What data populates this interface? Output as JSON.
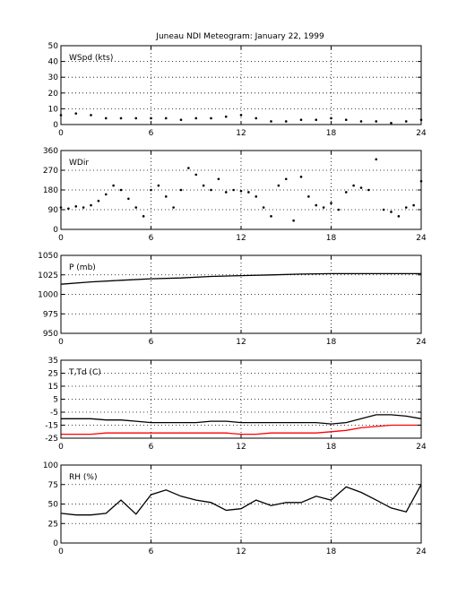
{
  "figure": {
    "title": "Juneau NDI Meteogram:   January 22, 1999"
  },
  "chart_data": [
    {
      "type": "scatter",
      "label": "WSpd (kts)",
      "xlim": [
        0,
        24
      ],
      "ylim": [
        0,
        50
      ],
      "xticks": [
        0,
        6,
        12,
        18,
        24
      ],
      "yticks": [
        0,
        10,
        20,
        30,
        40,
        50
      ],
      "grid": true,
      "series": [
        {
          "color": "#000000",
          "x": [
            0,
            1,
            2,
            3,
            4,
            5,
            6,
            7,
            8,
            9,
            10,
            11,
            12,
            13,
            14,
            15,
            16,
            17,
            18,
            19,
            20,
            21,
            22,
            23,
            24
          ],
          "y": [
            6,
            7,
            6,
            4,
            4,
            4,
            4,
            4,
            3,
            4,
            4,
            5,
            6,
            4,
            2,
            2,
            3,
            3,
            4,
            3,
            2,
            2,
            1,
            2,
            3
          ]
        }
      ]
    },
    {
      "type": "scatter",
      "label": "WDir",
      "xlim": [
        0,
        24
      ],
      "ylim": [
        0,
        360
      ],
      "xticks": [
        0,
        6,
        12,
        18,
        24
      ],
      "yticks": [
        0,
        90,
        180,
        270,
        360
      ],
      "grid": true,
      "series": [
        {
          "color": "#000000",
          "x": [
            0,
            0.5,
            1,
            1.5,
            2,
            2.5,
            3,
            3.5,
            4,
            4.5,
            5,
            5.5,
            6,
            6.5,
            7,
            7.5,
            8,
            8.5,
            9,
            9.5,
            10,
            10.5,
            11,
            11.5,
            12,
            12.5,
            13,
            13.5,
            14,
            14.5,
            15,
            15.5,
            16,
            16.5,
            17,
            17.5,
            18,
            18.5,
            19,
            19.5,
            20,
            20.5,
            21,
            21.5,
            22,
            22.5,
            23,
            23.5,
            24
          ],
          "y": [
            100,
            95,
            105,
            100,
            110,
            130,
            160,
            200,
            180,
            140,
            100,
            60,
            180,
            200,
            150,
            100,
            180,
            280,
            250,
            200,
            180,
            230,
            170,
            180,
            175,
            170,
            150,
            100,
            60,
            200,
            230,
            40,
            240,
            150,
            110,
            100,
            120,
            90,
            170,
            200,
            190,
            180,
            320,
            90,
            80,
            60,
            100,
            110,
            220
          ]
        }
      ]
    },
    {
      "type": "line",
      "label": "P (mb)",
      "xlim": [
        0,
        24
      ],
      "ylim": [
        950,
        1050
      ],
      "xticks": [
        0,
        6,
        12,
        18,
        24
      ],
      "yticks": [
        950,
        975,
        1000,
        1025,
        1050
      ],
      "grid": true,
      "series": [
        {
          "color": "#000000",
          "x": [
            0,
            2,
            4,
            6,
            8,
            10,
            12,
            14,
            16,
            18,
            20,
            22,
            24
          ],
          "y": [
            1013,
            1016,
            1018,
            1020,
            1021,
            1023,
            1024,
            1025,
            1026,
            1026.5,
            1026.5,
            1026.5,
            1026.5
          ]
        }
      ]
    },
    {
      "type": "line",
      "label": "T,Td (C)",
      "xlim": [
        0,
        24
      ],
      "ylim": [
        -25,
        35
      ],
      "xticks": [
        0,
        6,
        12,
        18,
        24
      ],
      "yticks": [
        -25,
        -15,
        -5,
        5,
        15,
        25,
        35
      ],
      "grid": true,
      "series": [
        {
          "color": "#000000",
          "x": [
            0,
            1,
            2,
            3,
            4,
            5,
            6,
            7,
            8,
            9,
            10,
            11,
            12,
            13,
            14,
            15,
            16,
            17,
            18,
            19,
            20,
            21,
            22,
            23,
            24
          ],
          "y": [
            -10,
            -10,
            -10,
            -11,
            -11,
            -12,
            -13,
            -13,
            -13,
            -13,
            -12,
            -12,
            -13,
            -13,
            -13,
            -13,
            -13,
            -13,
            -14,
            -13,
            -10,
            -7,
            -7,
            -8,
            -10
          ]
        },
        {
          "color": "#ff0000",
          "x": [
            0,
            1,
            2,
            3,
            4,
            5,
            6,
            7,
            8,
            9,
            10,
            11,
            12,
            13,
            14,
            15,
            16,
            17,
            18,
            19,
            20,
            21,
            22,
            23,
            24
          ],
          "y": [
            -22,
            -22,
            -22,
            -21,
            -21,
            -21,
            -21,
            -21,
            -21,
            -21,
            -21,
            -21,
            -22,
            -22,
            -21,
            -21,
            -21,
            -21,
            -20,
            -19,
            -17,
            -16,
            -15,
            -15,
            -15
          ]
        }
      ]
    },
    {
      "type": "line",
      "label": "RH (%)",
      "xlim": [
        0,
        24
      ],
      "ylim": [
        0,
        100
      ],
      "xticks": [
        0,
        6,
        12,
        18,
        24
      ],
      "yticks": [
        0,
        25,
        50,
        75,
        100
      ],
      "grid": true,
      "series": [
        {
          "color": "#000000",
          "x": [
            0,
            1,
            2,
            3,
            4,
            5,
            6,
            7,
            8,
            9,
            10,
            11,
            12,
            13,
            14,
            15,
            16,
            17,
            18,
            19,
            20,
            21,
            22,
            23,
            24
          ],
          "y": [
            38,
            36,
            36,
            38,
            55,
            37,
            62,
            68,
            60,
            55,
            52,
            42,
            44,
            55,
            48,
            52,
            52,
            60,
            55,
            72,
            65,
            55,
            45,
            40,
            75
          ]
        }
      ]
    }
  ]
}
